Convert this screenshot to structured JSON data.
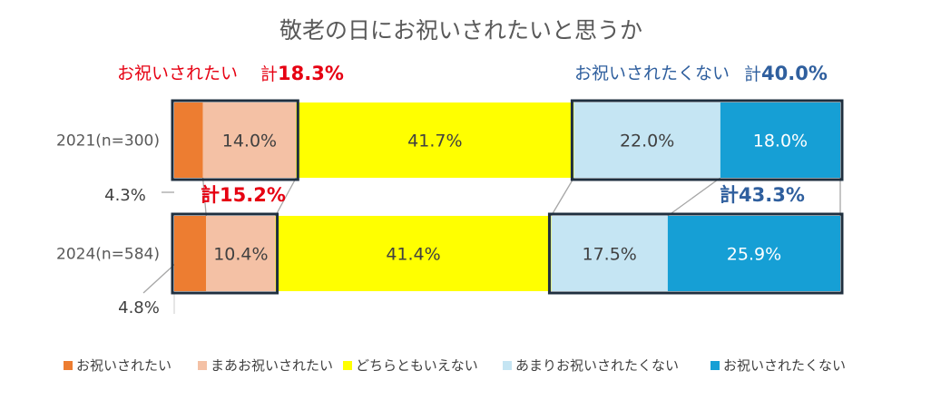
{
  "chart_data": {
    "type": "bar",
    "orientation": "horizontal-stacked-100",
    "title": "敬老の日にお祝いされたいと思うか",
    "categories": [
      "2021(n=300)",
      "2024(n=584)"
    ],
    "series": [
      {
        "name": "お祝いされたい",
        "color": "#ed7d31",
        "values": [
          4.3,
          4.8
        ],
        "labels": [
          "4.3%",
          "4.8%"
        ]
      },
      {
        "name": "まあお祝いされたい",
        "color": "#f4c1a5",
        "values": [
          14.0,
          10.4
        ],
        "labels": [
          "14.0%",
          "10.4%"
        ]
      },
      {
        "name": "どちらともいえない",
        "color": "#ffff00",
        "values": [
          41.7,
          41.4
        ],
        "labels": [
          "41.7%",
          "41.4%"
        ]
      },
      {
        "name": "あまりお祝いされたくない",
        "color": "#c5e5f3",
        "values": [
          22.0,
          17.5
        ],
        "labels": [
          "22.0%",
          "17.5%"
        ]
      },
      {
        "name": "お祝いされたくない",
        "color": "#169fd5",
        "values": [
          18.0,
          25.9
        ],
        "labels": [
          "18.0%",
          "25.9%"
        ]
      }
    ],
    "annotations": {
      "want_label": "お祝いされたい",
      "want_2021_prefix": "計",
      "want_2021_value": "18.3%",
      "want_2024_text": "計15.2%",
      "notwant_label": "お祝いされたくない",
      "notwant_2021_prefix": "計",
      "notwant_2021_value": "40.0%",
      "notwant_2024_text": "計43.3%"
    },
    "legend_position": "bottom",
    "xlim": [
      0,
      100
    ]
  }
}
